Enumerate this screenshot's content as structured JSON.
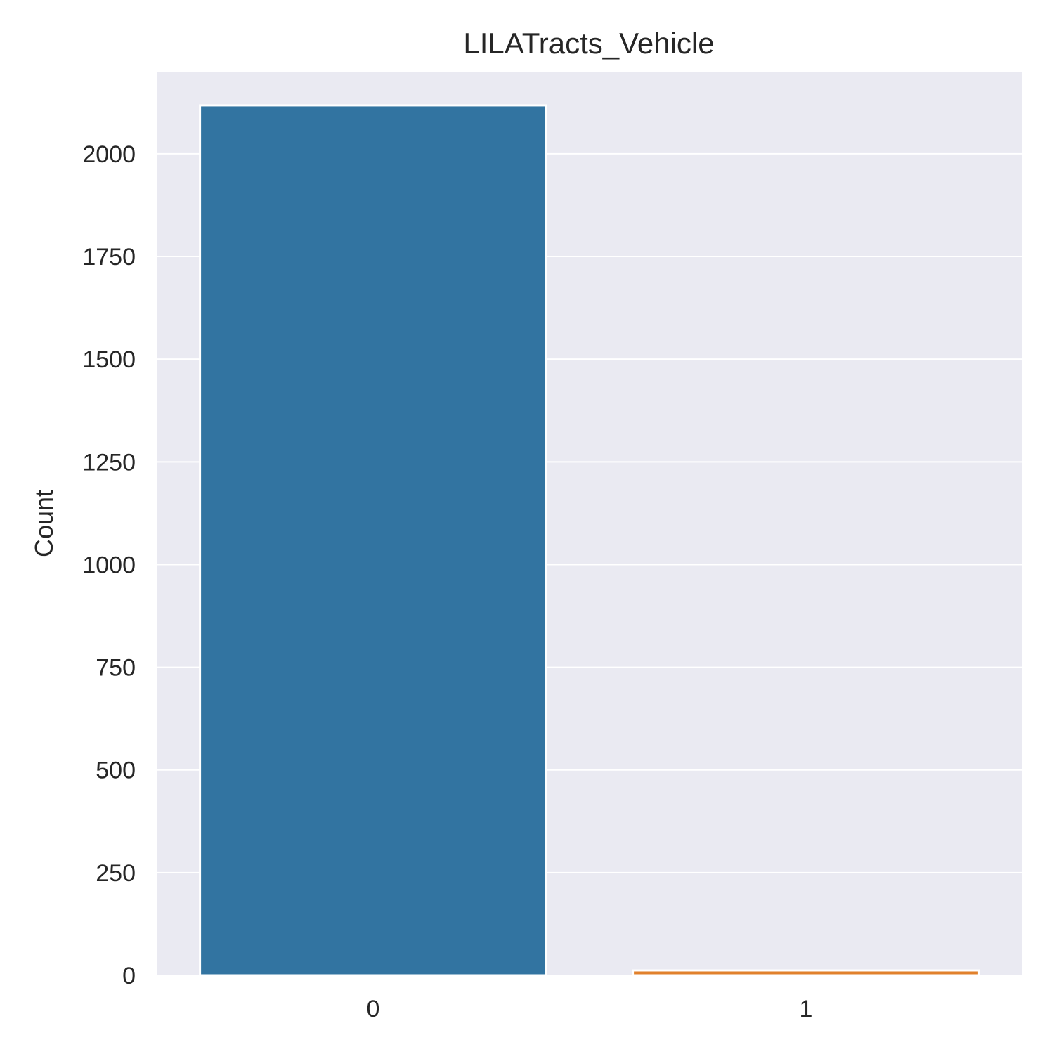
{
  "chart_data": {
    "type": "bar",
    "title": "LILATracts_Vehicle",
    "xlabel": "",
    "ylabel": "Count",
    "categories": [
      "0",
      "1"
    ],
    "values": [
      2118,
      12
    ],
    "ylim": [
      0,
      2200
    ],
    "yticks": [
      0,
      250,
      500,
      750,
      1000,
      1250,
      1500,
      1750,
      2000
    ],
    "grid": true,
    "colors": [
      "#3274a1",
      "#e1812c"
    ],
    "background": "#eaeaf2"
  }
}
